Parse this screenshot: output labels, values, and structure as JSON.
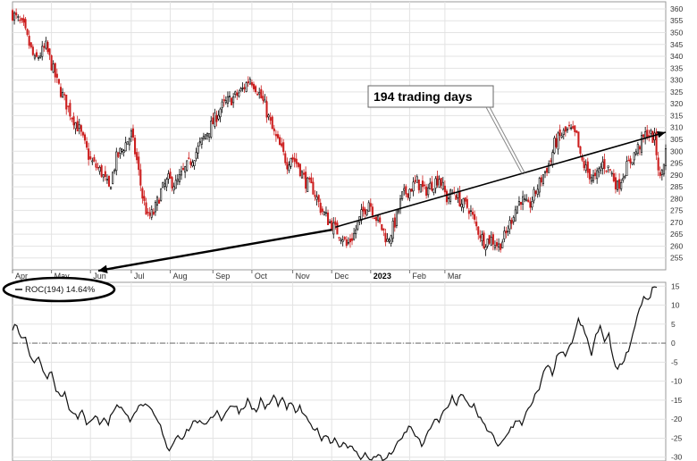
{
  "chart_data": [
    {
      "type": "candlestick",
      "panel": "price",
      "ylim": [
        250,
        363
      ],
      "y_ticks": [
        "255",
        "260",
        "265",
        "270",
        "275",
        "280",
        "285",
        "290",
        "295",
        "300",
        "305",
        "310",
        "315",
        "320",
        "325",
        "330",
        "335",
        "340",
        "345",
        "350",
        "355",
        "360"
      ],
      "x_ticks": [
        "Apr",
        "May",
        "Jun",
        "Jul",
        "Aug",
        "Sep",
        "Oct",
        "Nov",
        "Dec",
        "2023",
        "Feb",
        "Mar"
      ],
      "grid": true,
      "up_color": "#ffffff",
      "down_color": "#cc1f1f",
      "close_path": [
        [
          0,
          358
        ],
        [
          6,
          352
        ],
        [
          12,
          338
        ],
        [
          18,
          344
        ],
        [
          24,
          329
        ],
        [
          30,
          318
        ],
        [
          36,
          309
        ],
        [
          42,
          296
        ],
        [
          48,
          291
        ],
        [
          52,
          284
        ],
        [
          56,
          297
        ],
        [
          60,
          302
        ],
        [
          64,
          307
        ],
        [
          67,
          296
        ],
        [
          70,
          281
        ],
        [
          73,
          272
        ],
        [
          76,
          274
        ],
        [
          80,
          283
        ],
        [
          84,
          288
        ],
        [
          88,
          286
        ],
        [
          92,
          291
        ],
        [
          96,
          296
        ],
        [
          100,
          301
        ],
        [
          104,
          307
        ],
        [
          108,
          312
        ],
        [
          112,
          318
        ],
        [
          116,
          321
        ],
        [
          120,
          323
        ],
        [
          124,
          326
        ],
        [
          128,
          331
        ],
        [
          132,
          326
        ],
        [
          136,
          319
        ],
        [
          140,
          309
        ],
        [
          144,
          302
        ],
        [
          148,
          295
        ],
        [
          150,
          298
        ],
        [
          154,
          294
        ],
        [
          158,
          287
        ],
        [
          162,
          284
        ],
        [
          166,
          276
        ],
        [
          170,
          271
        ],
        [
          174,
          267
        ],
        [
          178,
          264
        ],
        [
          180,
          260
        ],
        [
          184,
          265
        ],
        [
          188,
          273
        ],
        [
          192,
          279
        ],
        [
          196,
          272
        ],
        [
          200,
          266
        ],
        [
          202,
          262
        ],
        [
          206,
          270
        ],
        [
          210,
          281
        ],
        [
          214,
          284
        ],
        [
          218,
          287
        ],
        [
          222,
          283
        ],
        [
          226,
          286
        ],
        [
          230,
          289
        ],
        [
          234,
          280
        ],
        [
          238,
          283
        ],
        [
          242,
          278
        ],
        [
          246,
          276
        ],
        [
          250,
          268
        ],
        [
          254,
          262
        ],
        [
          258,
          263
        ],
        [
          262,
          260
        ],
        [
          266,
          265
        ],
        [
          270,
          274
        ],
        [
          274,
          280
        ],
        [
          278,
          276
        ],
        [
          282,
          283
        ],
        [
          286,
          290
        ],
        [
          290,
          296
        ],
        [
          292,
          303
        ],
        [
          296,
          307
        ],
        [
          300,
          309
        ],
        [
          304,
          306
        ],
        [
          306,
          297
        ],
        [
          310,
          291
        ],
        [
          314,
          288
        ],
        [
          318,
          295
        ],
        [
          322,
          292
        ],
        [
          326,
          285
        ],
        [
          330,
          292
        ],
        [
          336,
          300
        ],
        [
          342,
          308
        ],
        [
          346,
          305
        ],
        [
          349,
          288
        ],
        [
          352,
          300
        ]
      ],
      "annotations": [
        "194 trading days"
      ],
      "trendline": {
        "start": [
          174,
          268
        ],
        "end": [
          352,
          308
        ]
      }
    },
    {
      "type": "line",
      "panel": "indicator",
      "legend": "ROC(194) 14.64%",
      "ylim": [
        -31,
        16
      ],
      "y_ticks": [
        "15",
        "10",
        "5",
        "0",
        "-5",
        "-10",
        "-15",
        "-20",
        "-25",
        "-30"
      ],
      "zero_line": true,
      "values": [
        [
          0,
          4
        ],
        [
          2,
          5
        ],
        [
          4,
          1
        ],
        [
          6,
          2
        ],
        [
          8,
          -3
        ],
        [
          10,
          -5
        ],
        [
          12,
          -4
        ],
        [
          14,
          -7
        ],
        [
          16,
          -9
        ],
        [
          18,
          -7
        ],
        [
          20,
          -12
        ],
        [
          22,
          -14
        ],
        [
          24,
          -13
        ],
        [
          26,
          -17
        ],
        [
          28,
          -18
        ],
        [
          30,
          -20
        ],
        [
          32,
          -18
        ],
        [
          34,
          -21
        ],
        [
          36,
          -20
        ],
        [
          38,
          -19
        ],
        [
          40,
          -21
        ],
        [
          42,
          -20
        ],
        [
          44,
          -21
        ],
        [
          46,
          -18
        ],
        [
          48,
          -16
        ],
        [
          50,
          -17
        ],
        [
          52,
          -19
        ],
        [
          54,
          -20
        ],
        [
          56,
          -18
        ],
        [
          58,
          -17
        ],
        [
          60,
          -16
        ],
        [
          62,
          -17
        ],
        [
          64,
          -18
        ],
        [
          66,
          -20
        ],
        [
          68,
          -22
        ],
        [
          70,
          -26
        ],
        [
          72,
          -28
        ],
        [
          74,
          -26
        ],
        [
          76,
          -24
        ],
        [
          78,
          -25
        ],
        [
          80,
          -23
        ],
        [
          82,
          -22
        ],
        [
          84,
          -20
        ],
        [
          86,
          -21
        ],
        [
          88,
          -22
        ],
        [
          90,
          -20
        ],
        [
          92,
          -19
        ],
        [
          94,
          -18
        ],
        [
          96,
          -20
        ],
        [
          98,
          -18
        ],
        [
          100,
          -17
        ],
        [
          102,
          -16
        ],
        [
          104,
          -18
        ],
        [
          106,
          -17
        ],
        [
          108,
          -15
        ],
        [
          110,
          -17
        ],
        [
          112,
          -18
        ],
        [
          114,
          -15
        ],
        [
          116,
          -17
        ],
        [
          118,
          -16
        ],
        [
          120,
          -14
        ],
        [
          122,
          -16
        ],
        [
          124,
          -15
        ],
        [
          126,
          -17
        ],
        [
          128,
          -16
        ],
        [
          130,
          -18
        ],
        [
          132,
          -17
        ],
        [
          134,
          -19
        ],
        [
          136,
          -21
        ],
        [
          138,
          -22
        ],
        [
          140,
          -23
        ],
        [
          142,
          -25
        ],
        [
          144,
          -24
        ],
        [
          146,
          -26
        ],
        [
          148,
          -25
        ],
        [
          150,
          -27
        ],
        [
          152,
          -26
        ],
        [
          154,
          -28
        ],
        [
          156,
          -27
        ],
        [
          158,
          -29
        ],
        [
          160,
          -30
        ],
        [
          162,
          -29
        ],
        [
          164,
          -31
        ],
        [
          166,
          -30
        ],
        [
          168,
          -29
        ],
        [
          170,
          -31
        ],
        [
          172,
          -30
        ],
        [
          174,
          -29
        ],
        [
          176,
          -27
        ],
        [
          178,
          -26
        ],
        [
          180,
          -24
        ],
        [
          182,
          -22
        ],
        [
          184,
          -23
        ],
        [
          186,
          -25
        ],
        [
          188,
          -27
        ],
        [
          190,
          -25
        ],
        [
          192,
          -22
        ],
        [
          194,
          -20
        ],
        [
          196,
          -21
        ],
        [
          198,
          -18
        ],
        [
          200,
          -17
        ],
        [
          202,
          -14
        ],
        [
          204,
          -16
        ],
        [
          206,
          -13
        ],
        [
          208,
          -15
        ],
        [
          210,
          -17
        ],
        [
          212,
          -16
        ],
        [
          214,
          -19
        ],
        [
          216,
          -21
        ],
        [
          218,
          -23
        ],
        [
          220,
          -24
        ],
        [
          222,
          -26
        ],
        [
          224,
          -27
        ],
        [
          226,
          -25
        ],
        [
          228,
          -23
        ],
        [
          230,
          -22
        ],
        [
          232,
          -20
        ],
        [
          234,
          -21
        ],
        [
          236,
          -18
        ],
        [
          238,
          -17
        ],
        [
          240,
          -14
        ],
        [
          242,
          -12
        ],
        [
          244,
          -8
        ],
        [
          246,
          -6
        ],
        [
          248,
          -8
        ],
        [
          250,
          -4
        ],
        [
          252,
          -2
        ],
        [
          254,
          -4
        ],
        [
          256,
          -1
        ],
        [
          258,
          2
        ],
        [
          260,
          6
        ],
        [
          262,
          4
        ],
        [
          264,
          1
        ],
        [
          266,
          -3
        ],
        [
          268,
          2
        ],
        [
          270,
          4
        ],
        [
          272,
          1
        ],
        [
          274,
          2
        ],
        [
          276,
          -4
        ],
        [
          278,
          -7
        ],
        [
          280,
          -5
        ],
        [
          282,
          -3
        ],
        [
          284,
          0
        ],
        [
          286,
          5
        ],
        [
          288,
          9
        ],
        [
          290,
          12
        ],
        [
          292,
          11
        ],
        [
          294,
          14
        ],
        [
          296,
          15
        ]
      ]
    }
  ]
}
